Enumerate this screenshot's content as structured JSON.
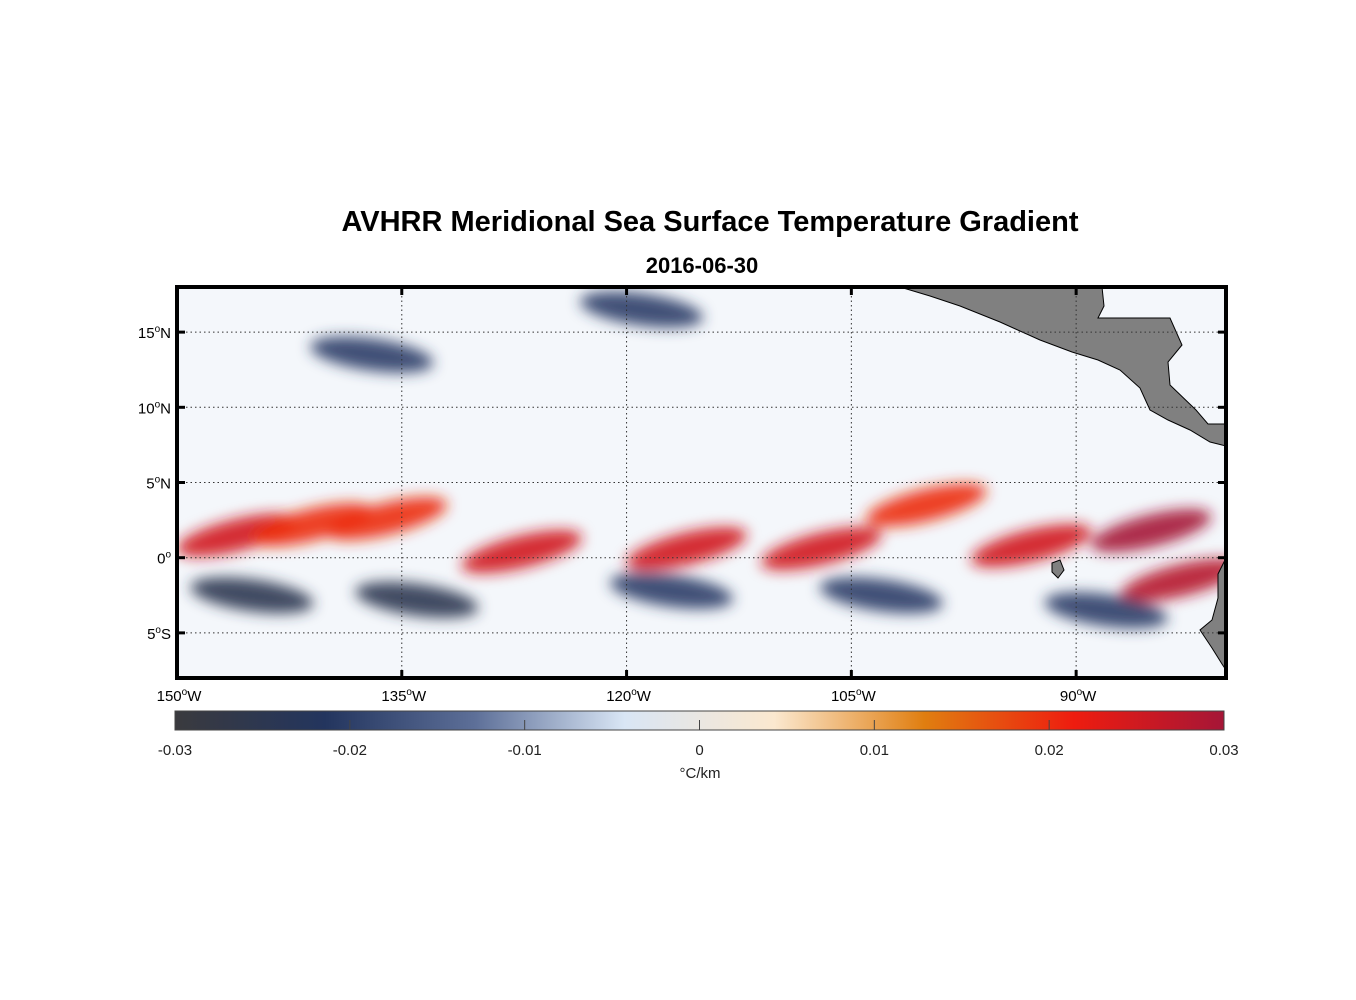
{
  "title": "AVHRR Meridional Sea Surface Temperature Gradient",
  "subtitle": "2016-06-30",
  "map": {
    "lon_range": [
      -150,
      -80
    ],
    "lat_range": [
      -8,
      18
    ],
    "lat_ticks": [
      {
        "value": 15,
        "label": "15",
        "hemi": "N"
      },
      {
        "value": 10,
        "label": "10",
        "hemi": "N"
      },
      {
        "value": 5,
        "label": "5",
        "hemi": "N"
      },
      {
        "value": 0,
        "label": "0",
        "hemi": ""
      },
      {
        "value": -5,
        "label": "5",
        "hemi": "S"
      }
    ],
    "lon_ticks": [
      {
        "value": -150,
        "label": "150",
        "hemi": "W"
      },
      {
        "value": -135,
        "label": "135",
        "hemi": "W"
      },
      {
        "value": -120,
        "label": "120",
        "hemi": "W"
      },
      {
        "value": -105,
        "label": "105",
        "hemi": "W"
      },
      {
        "value": -90,
        "label": "90",
        "hemi": "W"
      }
    ],
    "land_color": "#808080",
    "grid": true,
    "features": [
      {
        "lon": -146,
        "lat": 1.5,
        "strength": 0.025
      },
      {
        "lon": -141,
        "lat": 2.2,
        "strength": 0.02
      },
      {
        "lon": -136,
        "lat": 2.6,
        "strength": 0.02
      },
      {
        "lon": -127,
        "lat": 0.4,
        "strength": 0.025
      },
      {
        "lon": -116,
        "lat": 0.6,
        "strength": 0.025
      },
      {
        "lon": -107,
        "lat": 0.6,
        "strength": 0.025
      },
      {
        "lon": -100,
        "lat": 3.5,
        "strength": 0.02
      },
      {
        "lon": -93,
        "lat": 0.8,
        "strength": 0.025
      },
      {
        "lon": -85,
        "lat": 1.8,
        "strength": 0.03
      },
      {
        "lon": -83,
        "lat": -1.5,
        "strength": 0.028
      },
      {
        "lon": -145,
        "lat": -2.5,
        "strength": -0.025
      },
      {
        "lon": -134,
        "lat": -2.8,
        "strength": -0.025
      },
      {
        "lon": -117,
        "lat": -2.2,
        "strength": -0.02
      },
      {
        "lon": -103,
        "lat": -2.5,
        "strength": -0.02
      },
      {
        "lon": -88,
        "lat": -3.5,
        "strength": -0.02
      },
      {
        "lon": -137,
        "lat": 13.5,
        "strength": -0.02
      },
      {
        "lon": -119,
        "lat": 16.5,
        "strength": -0.02
      }
    ]
  },
  "colorbar": {
    "range": [
      -0.03,
      0.03
    ],
    "ticks": [
      "-0.03",
      "-0.02",
      "-0.01",
      "0",
      "0.01",
      "0.02",
      "0.03"
    ],
    "label": "°C/km",
    "colors": [
      "#3a3a3e",
      "#23355e",
      "#5d6f98",
      "#d9e6f5",
      "#fbe8cf",
      "#e07e10",
      "#ee1c0f",
      "#a51637"
    ]
  }
}
